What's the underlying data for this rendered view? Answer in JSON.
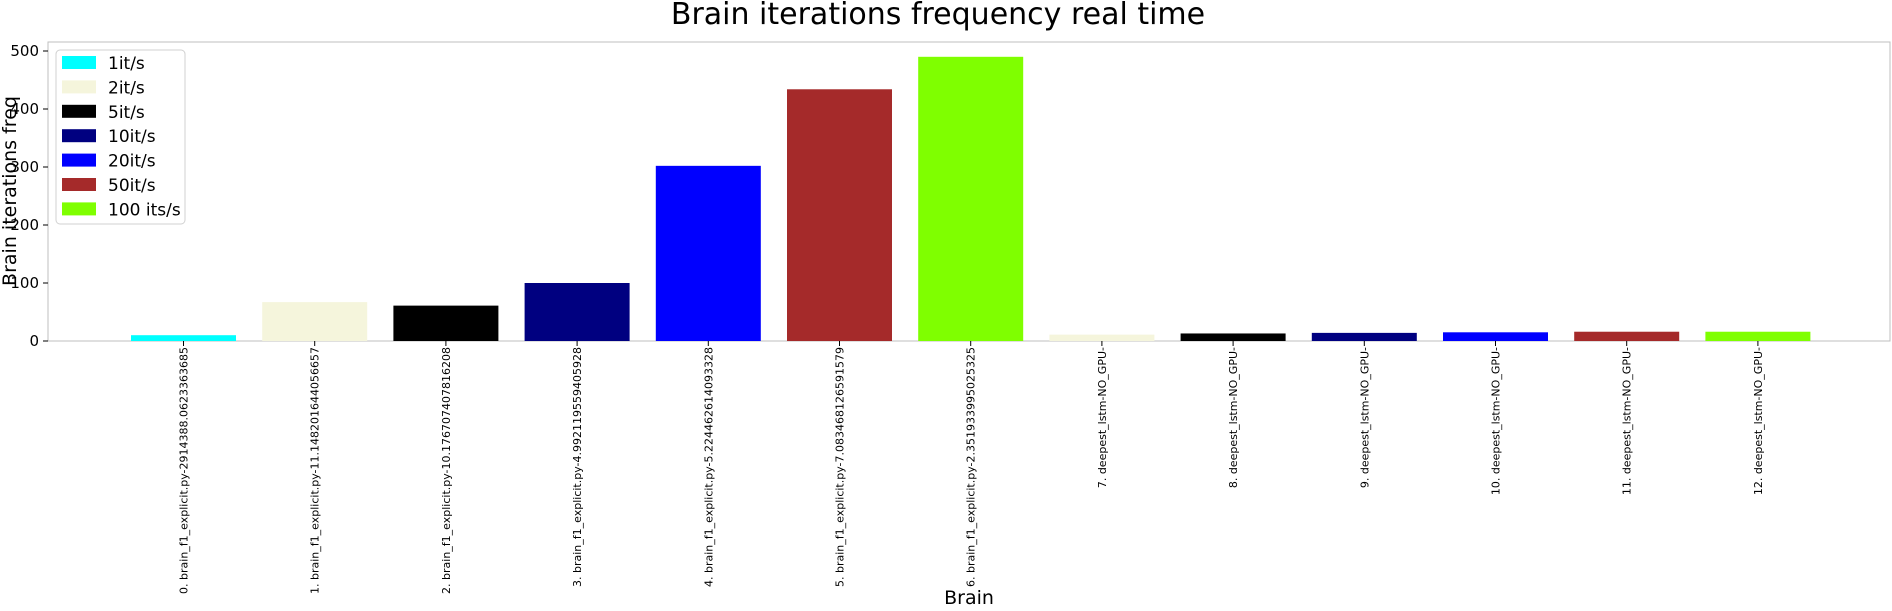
{
  "chart_data": {
    "type": "bar",
    "title": "Brain iterations frequency real time",
    "xlabel": "Brain",
    "ylabel": "Brain iterations freq",
    "ylim": [
      0,
      515
    ],
    "yticks": [
      0,
      100,
      200,
      300,
      400,
      500
    ],
    "grid": false,
    "legend_position": "top-left",
    "categories": [
      "0. brain_f1_explicit.py-2914388.0623363685",
      "1. brain_f1_explicit.py-11.148201644056657",
      "2. brain_f1_explicit.py-10.176707407816208",
      "3. brain_f1_explicit.py-4.992119559405928",
      "4. brain_f1_explicit.py-5.224462614093328",
      "5. brain_f1_explicit.py-7.083468126591579",
      "6. brain_f1_explicit.py-2.351933995025325",
      "7. deepest_lstm-NO_GPU-",
      "8. deepest_lstm-NO_GPU-",
      "9. deepest_lstm-NO_GPU-",
      "10. deepest_lstm-NO_GPU-",
      "11. deepest_lstm-NO_GPU-",
      "12. deepest_lstm-NO_GPU-"
    ],
    "values": [
      10,
      67,
      61,
      100,
      302,
      434,
      490,
      11,
      13,
      14,
      15,
      16,
      16
    ],
    "bar_colors": [
      "#00ffff",
      "#f5f5dc",
      "#000000",
      "#000080",
      "#0000ff",
      "#a52a2a",
      "#7fff00",
      "#f5f5dc",
      "#000000",
      "#000080",
      "#0000ff",
      "#a52a2a",
      "#7fff00"
    ],
    "legend": [
      {
        "label": "1it/s",
        "color": "#00ffff"
      },
      {
        "label": "2it/s",
        "color": "#f5f5dc"
      },
      {
        "label": "5it/s",
        "color": "#000000"
      },
      {
        "label": "10it/s",
        "color": "#000080"
      },
      {
        "label": "20it/s",
        "color": "#0000ff"
      },
      {
        "label": "50it/s",
        "color": "#a52a2a"
      },
      {
        "label": "100 its/s",
        "color": "#7fff00"
      }
    ]
  }
}
